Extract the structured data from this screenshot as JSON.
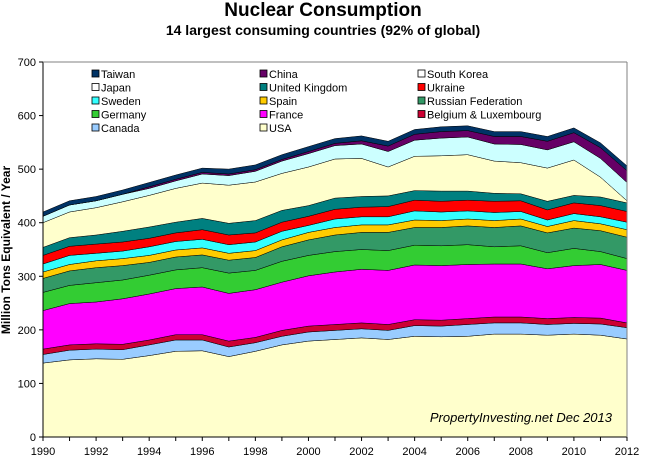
{
  "chart_data": {
    "type": "area",
    "stacked": true,
    "title": "Nuclear Consumption",
    "subtitle": "14 largest consuming countries (92% of global)",
    "ylabel": "Million Tons Equivalent / Year",
    "xlabel": "",
    "ylim": [
      0,
      700
    ],
    "yticks": [
      0,
      100,
      200,
      300,
      400,
      500,
      600,
      700
    ],
    "xlim": [
      1990,
      2012
    ],
    "xticks": [
      1990,
      1992,
      1994,
      1996,
      1998,
      2000,
      2002,
      2004,
      2006,
      2008,
      2010,
      2012
    ],
    "grid": false,
    "legend_position": "top",
    "annotation": "PropertyInvesting.net  Dec 2013",
    "x": [
      1990,
      1991,
      1992,
      1993,
      1994,
      1995,
      1996,
      1997,
      1998,
      1999,
      2000,
      2001,
      2002,
      2003,
      2004,
      2005,
      2006,
      2007,
      2008,
      2009,
      2010,
      2011,
      2012
    ],
    "series": [
      {
        "name": "USA",
        "color": "#FFFFCC",
        "values": [
          138,
          144,
          146,
          145,
          152,
          160,
          161,
          150,
          160,
          172,
          179,
          182,
          185,
          182,
          188,
          187,
          188,
          192,
          192,
          190,
          192,
          190,
          183
        ]
      },
      {
        "name": "Canada",
        "color": "#99CCFF",
        "values": [
          16,
          18,
          18,
          18,
          20,
          21,
          20,
          18,
          16,
          16,
          17,
          17,
          17,
          17,
          20,
          20,
          22,
          21,
          21,
          20,
          20,
          21,
          21
        ]
      },
      {
        "name": "Belgium & Luxembourg",
        "color": "#CC0033",
        "values": [
          10,
          10,
          10,
          10,
          9,
          10,
          10,
          11,
          10,
          11,
          11,
          11,
          11,
          11,
          11,
          11,
          11,
          11,
          11,
          11,
          11,
          11,
          9
        ]
      },
      {
        "name": "France",
        "color": "#FF00FF",
        "values": [
          72,
          77,
          78,
          85,
          86,
          86,
          89,
          89,
          89,
          90,
          94,
          98,
          100,
          101,
          102,
          102,
          101,
          99,
          99,
          93,
          97,
          100,
          98
        ]
      },
      {
        "name": "Germany",
        "color": "#33CC33",
        "values": [
          34,
          34,
          36,
          35,
          35,
          35,
          36,
          38,
          36,
          39,
          38,
          38,
          37,
          37,
          37,
          37,
          37,
          32,
          34,
          30,
          32,
          24,
          22
        ]
      },
      {
        "name": "Russian Federation",
        "color": "#339966",
        "values": [
          26,
          27,
          28,
          27,
          24,
          24,
          24,
          24,
          24,
          27,
          29,
          31,
          32,
          34,
          33,
          34,
          35,
          36,
          37,
          37,
          38,
          39,
          40
        ]
      },
      {
        "name": "Spain",
        "color": "#FFCC00",
        "values": [
          12,
          12,
          13,
          13,
          13,
          13,
          13,
          13,
          13,
          13,
          14,
          14,
          14,
          14,
          14,
          13,
          13,
          13,
          13,
          12,
          14,
          13,
          14
        ]
      },
      {
        "name": "Sweden",
        "color": "#33FFFF",
        "values": [
          15,
          17,
          14,
          14,
          16,
          16,
          16,
          16,
          16,
          16,
          13,
          16,
          15,
          15,
          17,
          16,
          15,
          15,
          14,
          12,
          13,
          13,
          14
        ]
      },
      {
        "name": "Ukraine",
        "color": "#FF0000",
        "values": [
          16,
          17,
          17,
          17,
          16,
          16,
          18,
          18,
          17,
          17,
          17,
          18,
          18,
          19,
          20,
          20,
          20,
          21,
          20,
          19,
          20,
          21,
          20
        ]
      },
      {
        "name": "United Kingdom",
        "color": "#008080",
        "values": [
          15,
          16,
          17,
          20,
          21,
          20,
          21,
          22,
          23,
          22,
          20,
          21,
          20,
          20,
          18,
          19,
          17,
          15,
          13,
          16,
          14,
          16,
          16
        ]
      },
      {
        "name": "Japan",
        "color": "#FFFFCC",
        "values": [
          46,
          48,
          51,
          55,
          59,
          63,
          66,
          71,
          72,
          69,
          72,
          73,
          71,
          54,
          64,
          66,
          68,
          60,
          58,
          62,
          66,
          37,
          4
        ]
      },
      {
        "name": "South Korea",
        "color": "#CCFFFF",
        "values": [
          12,
          13,
          13,
          14,
          13,
          14,
          17,
          18,
          20,
          23,
          25,
          25,
          27,
          29,
          30,
          33,
          33,
          32,
          34,
          34,
          34,
          35,
          34
        ]
      },
      {
        "name": "China",
        "color": "#660066",
        "values": [
          0,
          0,
          0,
          0,
          3,
          3,
          3,
          3,
          3,
          3,
          4,
          4,
          6,
          10,
          11,
          12,
          12,
          14,
          15,
          16,
          17,
          20,
          22
        ]
      },
      {
        "name": "Taiwan",
        "color": "#003366",
        "values": [
          8,
          8,
          8,
          8,
          8,
          8,
          8,
          9,
          9,
          9,
          9,
          9,
          9,
          9,
          9,
          9,
          9,
          9,
          9,
          9,
          9,
          9,
          9
        ]
      }
    ],
    "legend": [
      {
        "name": "Taiwan",
        "color": "#003366"
      },
      {
        "name": "China",
        "color": "#660066"
      },
      {
        "name": "South Korea",
        "color": "#FFFFFF"
      },
      {
        "name": "Japan",
        "color": "#FFFFFF"
      },
      {
        "name": "United Kingdom",
        "color": "#008080"
      },
      {
        "name": "Ukraine",
        "color": "#FF0000"
      },
      {
        "name": "Sweden",
        "color": "#33FFFF"
      },
      {
        "name": "Spain",
        "color": "#FFCC00"
      },
      {
        "name": "Russian Federation",
        "color": "#339966"
      },
      {
        "name": "Germany",
        "color": "#33CC33"
      },
      {
        "name": "France",
        "color": "#FF00FF"
      },
      {
        "name": "Belgium & Luxembourg",
        "color": "#CC0033"
      },
      {
        "name": "Canada",
        "color": "#99CCFF"
      },
      {
        "name": "USA",
        "color": "#FFFFCC"
      }
    ]
  }
}
